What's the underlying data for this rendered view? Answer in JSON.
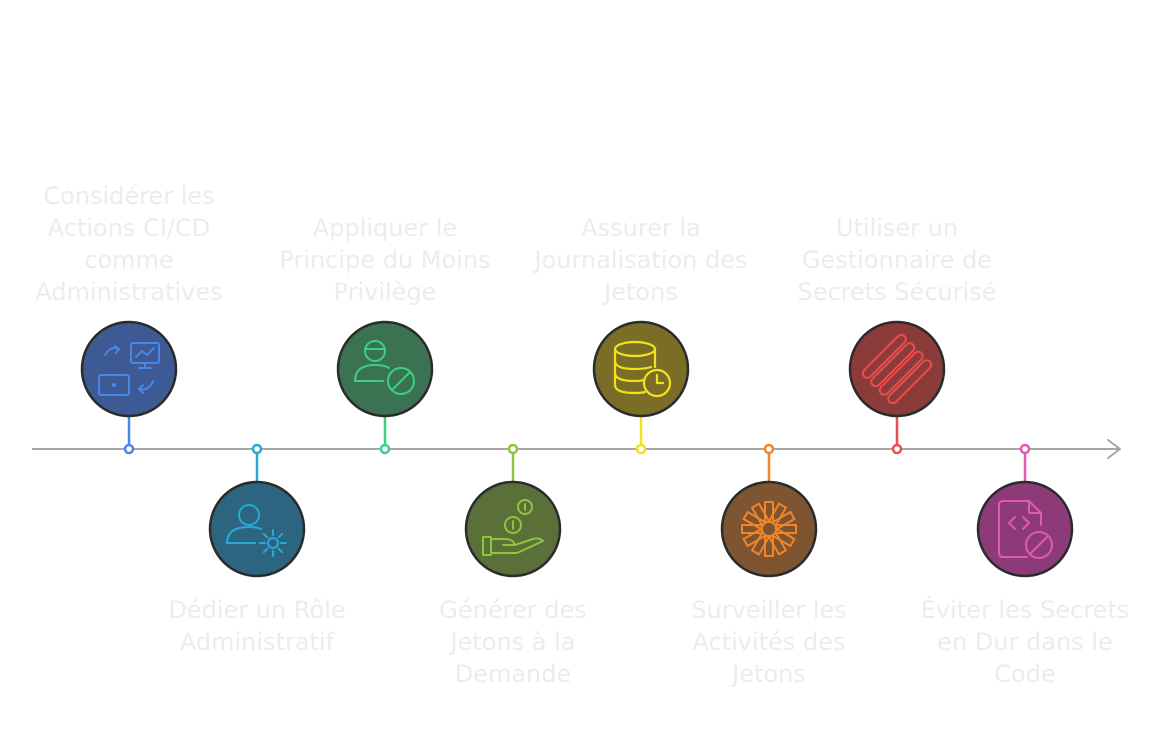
{
  "steps": [
    {
      "label": "Considérer les Actions CI/CD comme Administratives",
      "color": "#4a86e8",
      "fill": "#3d5a94",
      "position": "above",
      "icon": "workflow-monitor-icon"
    },
    {
      "label": "Dédier un Rôle Administratif",
      "color": "#2aa8d8",
      "fill": "#2b6580",
      "position": "below",
      "icon": "user-gear-icon"
    },
    {
      "label": "Appliquer le Principe du Moins Privilège",
      "color": "#3ccf82",
      "fill": "#3b7352",
      "position": "above",
      "icon": "user-blocked-icon"
    },
    {
      "label": "Générer des Jetons à la Demande",
      "color": "#8cc63f",
      "fill": "#5a7038",
      "position": "below",
      "icon": "hand-coins-icon"
    },
    {
      "label": "Assurer la Journalisation des Jetons",
      "color": "#f2e21b",
      "fill": "#7a6e26",
      "position": "above",
      "icon": "database-clock-icon"
    },
    {
      "label": "Surveiller les Activités des Jetons",
      "color": "#f0852a",
      "fill": "#7e5530",
      "position": "below",
      "icon": "starburst-icon"
    },
    {
      "label": "Utiliser un Gestionnaire de Secrets Sécurisé",
      "color": "#ef4b4b",
      "fill": "#8c3b3b",
      "position": "above",
      "icon": "stripes-logo-icon"
    },
    {
      "label": "Éviter les Secrets en Dur dans le Code",
      "color": "#e05ab0",
      "fill": "#8c3b78",
      "position": "below",
      "icon": "code-file-blocked-icon"
    }
  ],
  "axis_color": "#a6a6a6"
}
